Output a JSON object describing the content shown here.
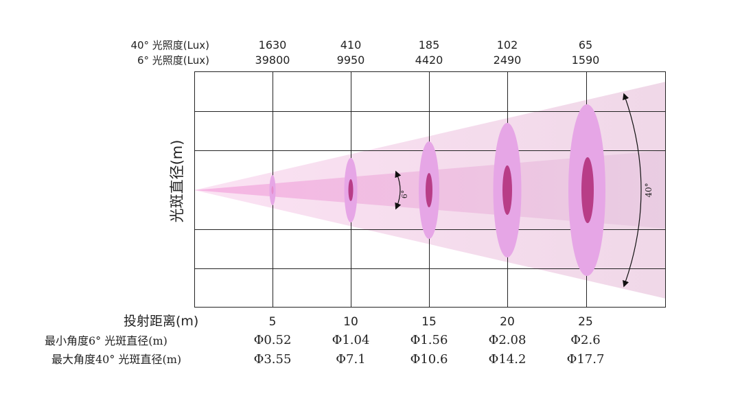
{
  "header": {
    "wide_label": "40° 光照度(Lux)",
    "narrow_label": "6° 光照度(Lux)"
  },
  "y_axis_label": "光斑直径(m)",
  "x_axis_label": "投射距离(m)",
  "rows": {
    "min_label": "最小角度6° 光斑直径(m)",
    "max_label": "最大角度40° 光斑直径(m)"
  },
  "angle_labels": {
    "narrow": "6°",
    "wide": "40°"
  },
  "distances": [
    "5",
    "10",
    "15",
    "20",
    "25"
  ],
  "lux_40": [
    "1630",
    "410",
    "185",
    "102",
    "65"
  ],
  "lux_6": [
    "39800",
    "9950",
    "4420",
    "2490",
    "1590"
  ],
  "diam_6": [
    "Φ0.52",
    "Φ1.04",
    "Φ1.56",
    "Φ2.08",
    "Φ2.6"
  ],
  "diam_40": [
    "Φ3.55",
    "Φ7.1",
    "Φ10.6",
    "Φ14.2",
    "Φ17.7"
  ],
  "colors": {
    "wide_beam": "#f6d6ec",
    "narrow_beam": "#f1b9df",
    "wide_spot": "#e09ee0",
    "narrow_spot": "#b83d87",
    "grid": "#222222"
  }
}
